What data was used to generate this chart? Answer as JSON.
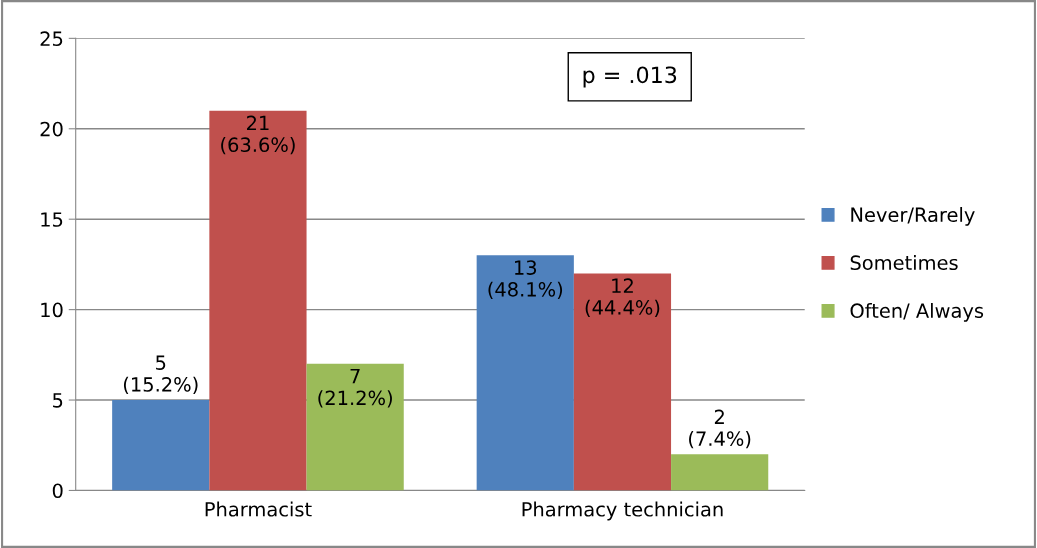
{
  "chart_data": {
    "type": "bar",
    "categories": [
      "Pharmacist",
      "Pharmacy technician"
    ],
    "series": [
      {
        "name": "Never/Rarely",
        "color": "#4f81bd",
        "values": [
          5,
          13
        ],
        "value_labels": [
          "5\n(15.2%)",
          "13\n(48.1%)"
        ]
      },
      {
        "name": "Sometimes",
        "color": "#c0504d",
        "values": [
          21,
          12
        ],
        "value_labels": [
          "21\n(63.6%)",
          "12\n(44.4%)"
        ]
      },
      {
        "name": "Often/ Always",
        "color": "#9bbb59",
        "values": [
          7,
          2
        ],
        "value_labels": [
          "7\n(21.2%)",
          "2\n(7.4%)"
        ]
      }
    ],
    "ylim": [
      0,
      25
    ],
    "yticks": [
      0,
      5,
      10,
      15,
      20,
      25
    ],
    "grid": "y",
    "legend": "right",
    "annotations": [
      "p = .013"
    ]
  }
}
